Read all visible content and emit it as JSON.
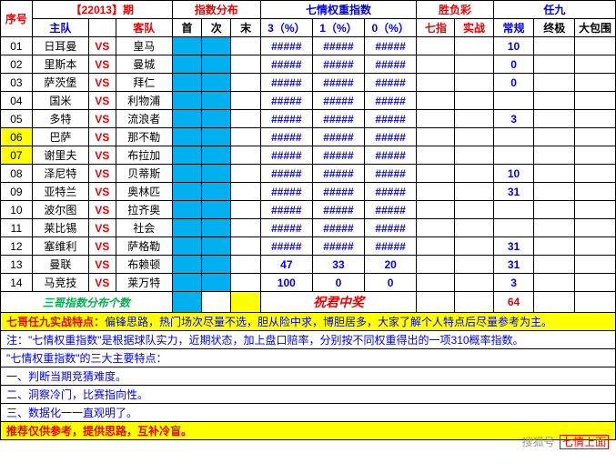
{
  "issue_label": "【22013】期",
  "headers": {
    "seq": "序号",
    "dist": "指数分布",
    "qiqing": "七情权重指数",
    "sfc": "胜负彩",
    "r9": "任九",
    "home": "主队",
    "away": "客队",
    "shou": "首",
    "ci": "次",
    "mo": "末",
    "p3": "3（%）",
    "p1": "1（%）",
    "p0": "0（%）",
    "qz": "七指",
    "sz": "实战",
    "cg": "常规",
    "zj": "终极",
    "dbw": "大包围"
  },
  "colors": {
    "cyan": "#00b0f0",
    "yellow": "#ffff00",
    "blue": "#0000ee",
    "red": "#ee0000",
    "green": "#00b050"
  },
  "col_widths": {
    "seq": 28,
    "home": 50,
    "vs": 24,
    "away": 50,
    "idx": 26,
    "pct": 46,
    "sfc": 34,
    "r9": 36
  },
  "hash": "#####",
  "rows": [
    {
      "no": "01",
      "home": "日耳曼",
      "away": "皇马",
      "v3": "#",
      "v1": "#",
      "v0": "#",
      "cg": "10",
      "hl": null
    },
    {
      "no": "02",
      "home": "里斯本",
      "away": "曼城",
      "v3": "#",
      "v1": "#",
      "v0": "#",
      "cg": "0",
      "hl": null
    },
    {
      "no": "03",
      "home": "萨茨堡",
      "away": "拜仁",
      "v3": "#",
      "v1": "#",
      "v0": "#",
      "cg": "0",
      "hl": null
    },
    {
      "no": "04",
      "home": "国米",
      "away": "利物浦",
      "v3": "#",
      "v1": "#",
      "v0": "#",
      "cg": "",
      "hl": null
    },
    {
      "no": "05",
      "home": "多特",
      "away": "流浪者",
      "v3": "#",
      "v1": "#",
      "v0": "#",
      "cg": "3",
      "hl": null
    },
    {
      "no": "06",
      "home": "巴萨",
      "away": "那不勒",
      "v3": "#",
      "v1": "#",
      "v0": "#",
      "cg": "",
      "hl": "seq"
    },
    {
      "no": "07",
      "home": "谢里夫",
      "away": "布拉加",
      "v3": "#",
      "v1": "#",
      "v0": "#",
      "cg": "",
      "hl": "seq"
    },
    {
      "no": "08",
      "home": "泽尼特",
      "away": "贝蒂斯",
      "v3": "#",
      "v1": "#",
      "v0": "#",
      "cg": "10",
      "hl": null
    },
    {
      "no": "09",
      "home": "亚特兰",
      "away": "奥林匹",
      "v3": "#",
      "v1": "#",
      "v0": "#",
      "cg": "31",
      "hl": null
    },
    {
      "no": "10",
      "home": "波尔图",
      "away": "拉齐奥",
      "v3": "#",
      "v1": "#",
      "v0": "#",
      "cg": "",
      "hl": null
    },
    {
      "no": "11",
      "home": "莱比锡",
      "away": "社会",
      "v3": "#",
      "v1": "#",
      "v0": "#",
      "cg": "",
      "hl": null
    },
    {
      "no": "12",
      "home": "塞维利",
      "away": "萨格勒",
      "v3": "#",
      "v1": "#",
      "v0": "#",
      "cg": "31",
      "hl": null
    },
    {
      "no": "13",
      "home": "曼联",
      "away": "布赖顿",
      "v3": "47",
      "v1": "33",
      "v0": "20",
      "cg": "31",
      "hl": null
    },
    {
      "no": "14",
      "home": "马竞技",
      "away": "莱万特",
      "v3": "100",
      "v1": "0",
      "v0": "0",
      "cg": "3",
      "hl": null
    }
  ],
  "summary": {
    "label": "三哥指数分布个数",
    "wish": "祝君中奖",
    "cg_total": "64"
  },
  "notes": {
    "l1a": "七哥任九实战特点：",
    "l1b": "偏锋思路，热门场次尽量不选，胆从险中求，博胆居多，大家了解个人特点后尽量参考为主。",
    "l2": "注：\"七情权重指数\"是根据球队实力，近期状态，加上盘口赔率，分别按不同权重得出的一项310概率指数。",
    "l3": "\"七情权重指数\"的三大主要特点：",
    "l4": "一、判断当期竞猜难度。",
    "l5": "二、洞察冷门，比赛指向性。",
    "l6": "三、数据化一一直观明了。",
    "l7": "推荐仅供参考，提供思路，互补冷盲。"
  },
  "watermark": {
    "a": "搜狐号",
    "b": "七情上面"
  }
}
